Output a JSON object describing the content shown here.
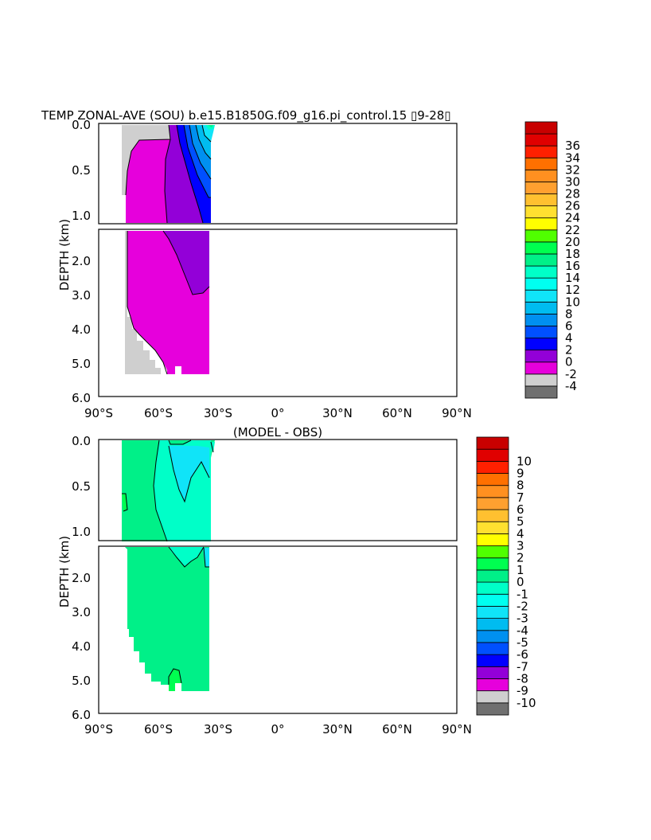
{
  "chart_data": [
    {
      "type": "heatmap",
      "title": "TEMP ZONAL-AVE (SOU) b.e15.B1850G.f09_g16.pi_control.15 ▯9-28▯",
      "ylabel": "DEPTH (km)",
      "xlabel": "",
      "x_ticks": [
        "90°S",
        "60°S",
        "30°S",
        "0°",
        "30°N",
        "60°N",
        "90°N"
      ],
      "x_range": [
        -90,
        90
      ],
      "y_ticks_upper": [
        "0.0",
        "0.5",
        "1.0"
      ],
      "y_ticks_lower": [
        "2.0",
        "3.0",
        "4.0",
        "5.0",
        "6.0"
      ],
      "y_range": [
        0,
        6
      ],
      "y_split_km": 1.1,
      "colorbar": {
        "labels": [
          "-4",
          "-2",
          "0",
          "2",
          "4",
          "6",
          "8",
          "10",
          "12",
          "14",
          "16",
          "18",
          "20",
          "22",
          "24",
          "26",
          "28",
          "30",
          "32",
          "34",
          "36"
        ],
        "colors": [
          "#707070",
          "#cfcfcf",
          "#e600dc",
          "#9300d8",
          "#0000ff",
          "#0050ff",
          "#0090f0",
          "#00bcf0",
          "#10e4f8",
          "#00fff0",
          "#00ffc8",
          "#00f088",
          "#00ff50",
          "#50ff00",
          "#ffff00",
          "#ffe030",
          "#ffc030",
          "#ffa030",
          "#ff9020",
          "#ff7000",
          "#ff2000",
          "#e00000",
          "#c80000"
        ]
      },
      "note_lat_extent": [
        -78,
        -34
      ]
    },
    {
      "type": "heatmap",
      "title": "(MODEL - OBS)",
      "ylabel": "DEPTH (km)",
      "xlabel": "",
      "x_ticks": [
        "90°S",
        "60°S",
        "30°S",
        "0°",
        "30°N",
        "60°N",
        "90°N"
      ],
      "x_range": [
        -90,
        90
      ],
      "y_ticks_upper": [
        "0.0",
        "0.5",
        "1.0"
      ],
      "y_ticks_lower": [
        "2.0",
        "3.0",
        "4.0",
        "5.0",
        "6.0"
      ],
      "y_range": [
        0,
        6
      ],
      "y_split_km": 1.1,
      "colorbar": {
        "labels": [
          "-10",
          "-9",
          "-8",
          "-7",
          "-6",
          "-5",
          "-4",
          "-3",
          "-2",
          "-1",
          "0",
          "1",
          "2",
          "3",
          "4",
          "5",
          "6",
          "7",
          "8",
          "9",
          "10"
        ],
        "colors": [
          "#707070",
          "#cfcfcf",
          "#e600dc",
          "#9300d8",
          "#0000ff",
          "#0050ff",
          "#0090f0",
          "#00bcf0",
          "#10e4f8",
          "#00fff0",
          "#00ffc8",
          "#00f088",
          "#00ff50",
          "#50ff00",
          "#ffff00",
          "#ffe030",
          "#ffc030",
          "#ffa030",
          "#ff9020",
          "#ff7000",
          "#ff2000",
          "#e00000",
          "#c80000"
        ]
      },
      "note_lat_extent": [
        -78,
        -34
      ]
    }
  ]
}
